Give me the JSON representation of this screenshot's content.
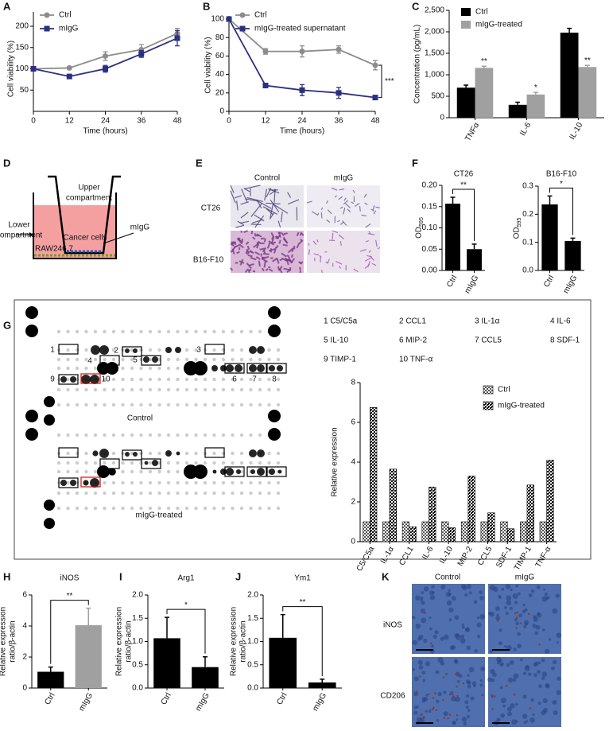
{
  "chart_data": [
    {
      "type": "line",
      "xlabel": "Time (hours)",
      "ylabel": "Cell viability (%)",
      "x": [
        0,
        12,
        24,
        36,
        48
      ],
      "xlim": [
        0,
        48
      ],
      "xticks": [
        0,
        12,
        24,
        36,
        48
      ],
      "ylim": [
        0,
        200
      ],
      "yticks": [
        50,
        100,
        150,
        200
      ],
      "series": [
        {
          "name": "Ctrl",
          "color": "#8c8c8c",
          "marker": "circle",
          "values": [
            100,
            102,
            130,
            145,
            183
          ],
          "errors": [
            3,
            3,
            10,
            12,
            12
          ]
        },
        {
          "name": "mIgG",
          "color": "#2b2f7f",
          "marker": "square",
          "values": [
            100,
            82,
            100,
            135,
            172
          ],
          "errors": [
            3,
            3,
            8,
            8,
            18
          ]
        }
      ]
    },
    {
      "type": "line",
      "xlabel": "Time (hours)",
      "ylabel": "Cell viability (%)",
      "x": [
        0,
        12,
        24,
        36,
        48
      ],
      "xlim": [
        0,
        48
      ],
      "xticks": [
        0,
        12,
        24,
        36,
        48
      ],
      "ylim": [
        0,
        100
      ],
      "yticks": [
        0,
        20,
        40,
        60,
        80,
        100
      ],
      "series": [
        {
          "name": "Ctrl",
          "color": "#8c8c8c",
          "marker": "circle",
          "values": [
            100,
            65,
            65,
            67,
            50
          ],
          "errors": [
            2,
            3,
            6,
            4,
            5
          ]
        },
        {
          "name": "mIgG-treated supernatant",
          "color": "#2b2f7f",
          "marker": "square",
          "values": [
            100,
            28,
            23,
            20,
            15
          ],
          "errors": [
            2,
            2,
            6,
            6,
            2
          ]
        }
      ],
      "significance": "***"
    },
    {
      "type": "bar",
      "ylabel": "Concentration (pg/mL)",
      "categories": [
        "TNFα",
        "IL-6",
        "IL-10"
      ],
      "ylim": [
        0,
        2500
      ],
      "yticks": [
        0,
        500,
        {
          "value": 1000,
          "label": "1,000"
        },
        {
          "value": 1500,
          "label": "1,500"
        },
        {
          "value": 2000,
          "label": "2,000"
        },
        {
          "value": 2500,
          "label": "2,500"
        }
      ],
      "series": [
        {
          "name": "Ctrl",
          "color": "#000000",
          "values": [
            700,
            300,
            1980
          ],
          "errors": [
            60,
            60,
            100
          ]
        },
        {
          "name": "mIgG-treated",
          "color": "#a0a0a0",
          "values": [
            1160,
            540,
            1180
          ],
          "errors": [
            40,
            50,
            40
          ],
          "annotations": [
            "**",
            "*",
            "**"
          ]
        }
      ]
    },
    {
      "type": "bar",
      "title": "CT26",
      "ylabel": "OD",
      "ylabel_subscript": "595",
      "categories": [
        "Ctrl",
        "mIgG"
      ],
      "values": [
        0.157,
        0.05
      ],
      "errors": [
        0.015,
        0.012
      ],
      "colors": [
        "#000000",
        "#000000"
      ],
      "ylim": [
        0,
        0.2
      ],
      "yticks": [
        {
          "value": 0,
          "label": "0.00"
        },
        0.05,
        {
          "value": 0.1,
          "label": "0.10"
        },
        0.15,
        {
          "value": 0.2,
          "label": "0.20"
        }
      ],
      "significance": "**"
    },
    {
      "type": "bar",
      "title": "B16-F10",
      "ylabel": "OD",
      "ylabel_subscript": "595",
      "categories": [
        "Ctrl",
        "mIgG"
      ],
      "values": [
        0.235,
        0.105
      ],
      "errors": [
        0.03,
        0.01
      ],
      "colors": [
        "#000000",
        "#000000"
      ],
      "ylim": [
        0,
        0.3
      ],
      "yticks": [
        {
          "value": 0,
          "label": "0.0"
        },
        0.1,
        0.2,
        0.3
      ],
      "significance": "*"
    },
    {
      "type": "bar",
      "ylabel": "Relative expression",
      "categories": [
        "C5/C5a",
        "IL-1α",
        "CCL1",
        "IL-6",
        "IL-10",
        "MIP-2",
        "CCL5",
        "SDF-1",
        "TIMP-1",
        "TNF-α"
      ],
      "ylim": [
        0,
        8
      ],
      "yticks": [
        0,
        2,
        4,
        6,
        8
      ],
      "series": [
        {
          "name": "Ctrl",
          "color": "#555555",
          "values": [
            1,
            1,
            1,
            1,
            1,
            1,
            1,
            1,
            1,
            1
          ]
        },
        {
          "name": "mIgG-treated",
          "color": "#111111",
          "values": [
            6.75,
            3.65,
            0.75,
            2.75,
            0.7,
            3.3,
            1.45,
            0.65,
            2.85,
            4.1
          ]
        }
      ]
    },
    {
      "type": "bar",
      "title": "iNOS",
      "ylabel": [
        "Relative expression",
        "ratio/β-actin"
      ],
      "categories": [
        "Ctrl",
        "mIgG"
      ],
      "values": [
        1.05,
        4.05
      ],
      "errors": [
        0.3,
        1.1
      ],
      "colors": [
        "#000000",
        "#a0a0a0"
      ],
      "ylim": [
        0,
        6
      ],
      "yticks": [
        0,
        2,
        4,
        6
      ],
      "significance": "**"
    },
    {
      "type": "bar",
      "title": "Arg1",
      "ylabel": [
        "Relative expression",
        "ratio/β-actin"
      ],
      "categories": [
        "Ctrl",
        "mIgG"
      ],
      "values": [
        1.07,
        0.45
      ],
      "errors": [
        0.45,
        0.22
      ],
      "colors": [
        "#000000",
        "#000000"
      ],
      "ylim": [
        0,
        2
      ],
      "yticks": [
        {
          "value": 0,
          "label": "0.0"
        },
        0.5,
        {
          "value": 1,
          "label": "1.0"
        },
        1.5,
        {
          "value": 2,
          "label": "2.0"
        }
      ],
      "significance": "*"
    },
    {
      "type": "bar",
      "title": "Ym1",
      "ylabel": [
        "Relative expression",
        "ratio/β-actin"
      ],
      "categories": [
        "Ctrl",
        "mIgG"
      ],
      "values": [
        1.08,
        0.12
      ],
      "errors": [
        0.5,
        0.07
      ],
      "colors": [
        "#000000",
        "#000000"
      ],
      "ylim": [
        0,
        2
      ],
      "yticks": [
        {
          "value": 0,
          "label": "0.0"
        },
        0.5,
        {
          "value": 1,
          "label": "1.0"
        },
        1.5,
        {
          "value": 2,
          "label": "2.0"
        }
      ],
      "significance": "**"
    }
  ],
  "panel_labels": [
    "A",
    "B",
    "C",
    "D",
    "E",
    "F",
    "G",
    "H",
    "I",
    "J",
    "K"
  ],
  "diagram": {
    "upper": [
      "Upper",
      "compartment"
    ],
    "lower": [
      "Lower",
      "compartment"
    ],
    "cancer_cells": "Cancer cells",
    "treatment": "mIgG",
    "macrophages": "RAW246.7"
  },
  "transwell": {
    "columns": [
      "Control",
      "mIgG"
    ],
    "rows": [
      "CT26",
      "B16-F10"
    ]
  },
  "array": {
    "key": [
      "1 C5/C5a",
      "2 CCL1",
      "3 IL-1α",
      "4 IL-6",
      "5 IL-10",
      "6 MIP-2",
      "7 CCL5",
      "8 SDF-1",
      "9 TIMP-1",
      "10 TNF-α"
    ],
    "spot_numbers": [
      1,
      2,
      3,
      4,
      5,
      6,
      7,
      8,
      9,
      10
    ],
    "blots": [
      "Control",
      "mIgG-treated"
    ]
  },
  "ihc": {
    "columns": [
      "Control",
      "mIgG"
    ],
    "rows": [
      "iNOS",
      "CD206"
    ]
  }
}
